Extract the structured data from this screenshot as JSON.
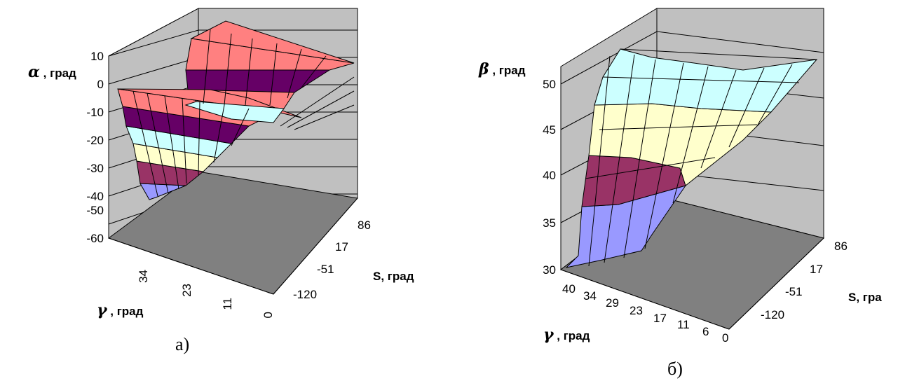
{
  "chart_data": [
    {
      "type": "surface",
      "caption": "а)",
      "zlabel": {
        "symbol": "α",
        "text": " , град"
      },
      "xlabel": {
        "symbol": "γ",
        "text": " , град"
      },
      "ylabel": "S, град",
      "z_ticks": [
        "10",
        "0",
        "-10",
        "-20",
        "-30",
        "-40",
        "-50",
        "-60"
      ],
      "x_ticks": [
        "34",
        "23",
        "11",
        "0"
      ],
      "y_ticks": [
        "86",
        "17",
        "-51",
        "-120"
      ],
      "zlim": [
        -60,
        10
      ],
      "band_colors": [
        "#9999ff",
        "#993366",
        "#ffffcc",
        "#ccffff",
        "#660066",
        "#ff8080"
      ]
    },
    {
      "type": "surface",
      "caption": "б)",
      "zlabel": {
        "symbol": "β",
        "text": " , град"
      },
      "xlabel": {
        "symbol": "γ",
        "text": " , град"
      },
      "ylabel": "S, гра",
      "z_ticks": [
        "50",
        "45",
        "40",
        "35",
        "30"
      ],
      "x_ticks": [
        "40",
        "34",
        "29",
        "23",
        "17",
        "11",
        "6",
        "0"
      ],
      "y_ticks": [
        "86",
        "17",
        "-51",
        "-120"
      ],
      "zlim": [
        30,
        50
      ],
      "band_colors": [
        "#9999ff",
        "#993366",
        "#ffffcc",
        "#ccffff"
      ]
    }
  ]
}
